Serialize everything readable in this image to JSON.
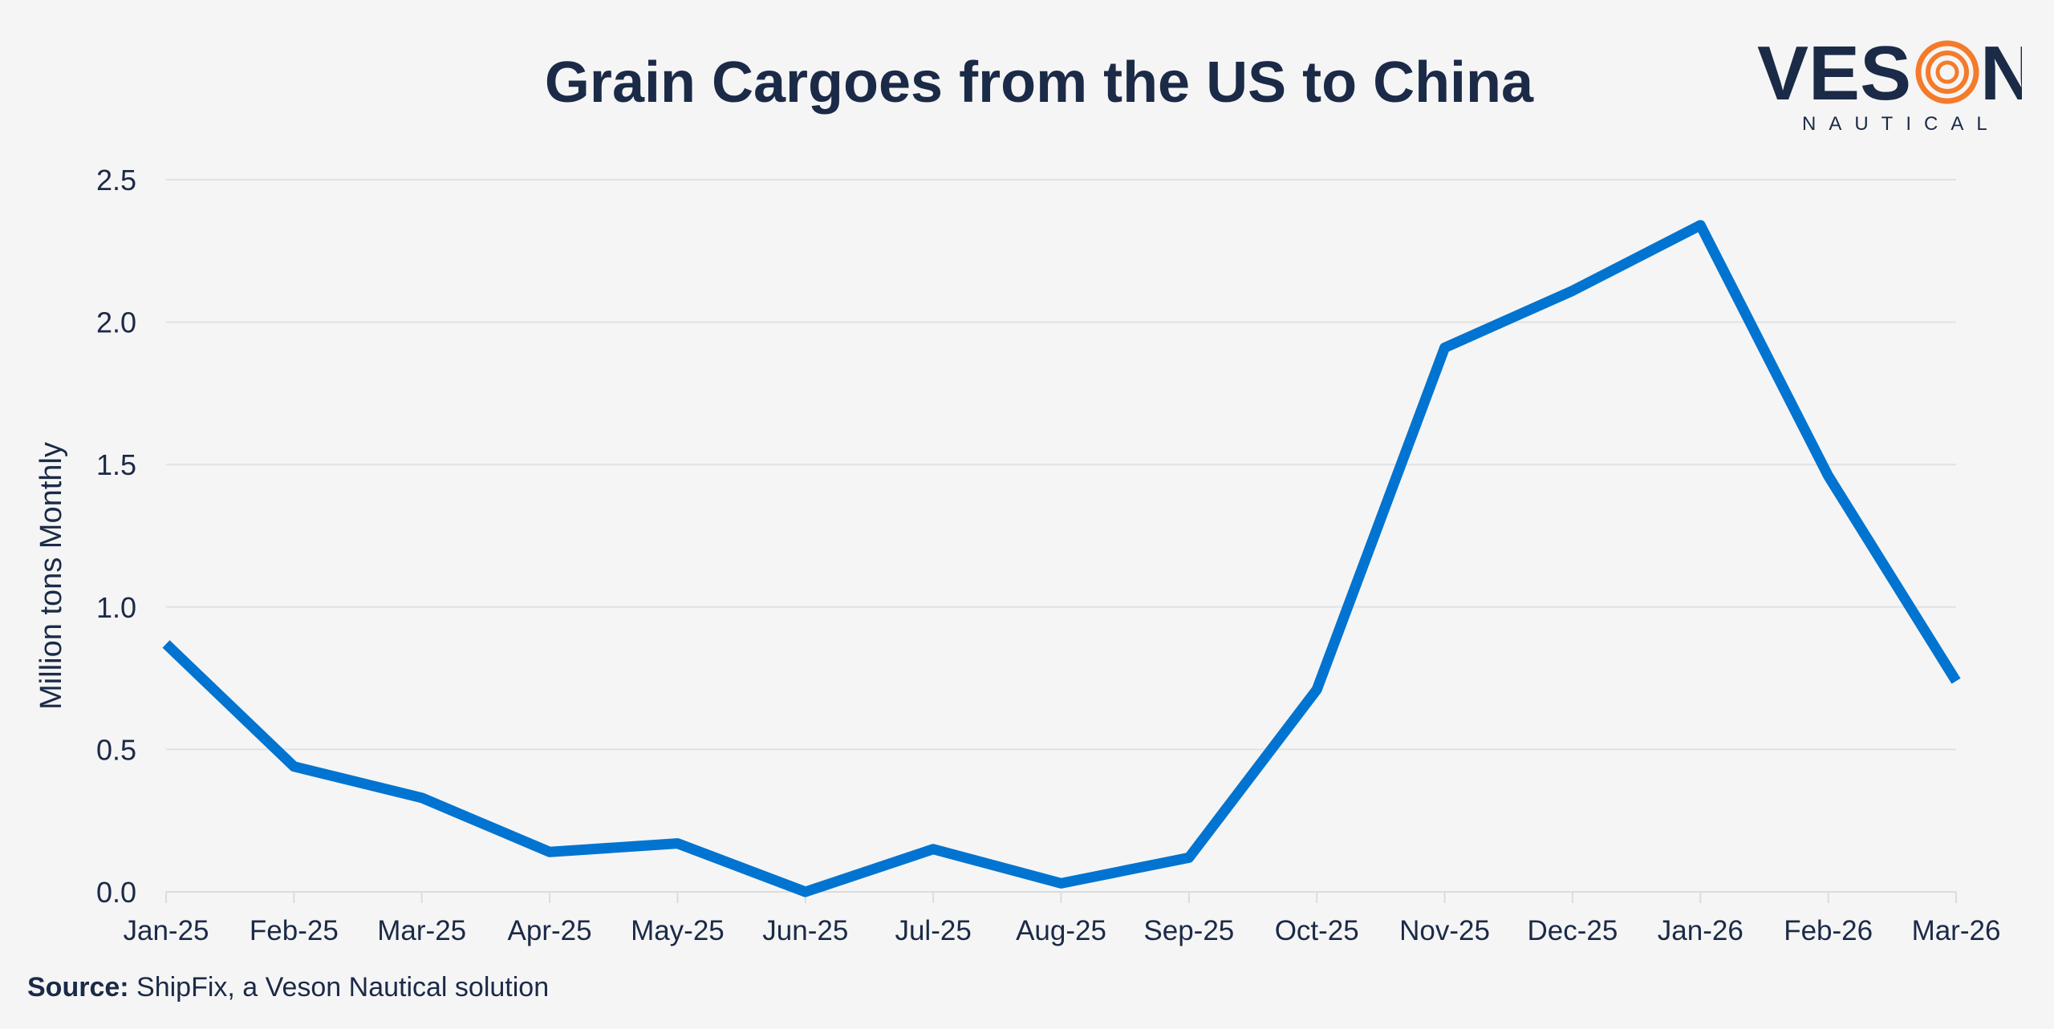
{
  "chart_data": {
    "type": "line",
    "title": "Grain Cargoes from the US to China",
    "xlabel": "",
    "ylabel": "Million tons Monthly",
    "categories": [
      "Jan-25",
      "Feb-25",
      "Mar-25",
      "Apr-25",
      "May-25",
      "Jun-25",
      "Jul-25",
      "Aug-25",
      "Sep-25",
      "Oct-25",
      "Nov-25",
      "Dec-25",
      "Jan-26",
      "Feb-26",
      "Mar-26"
    ],
    "values": [
      0.87,
      0.44,
      0.33,
      0.14,
      0.17,
      0.0,
      0.15,
      0.03,
      0.12,
      0.71,
      1.91,
      2.11,
      2.34,
      1.46,
      0.74
    ],
    "ylim": [
      0,
      2.5
    ],
    "yticks": [
      "0.0",
      "0.5",
      "1.0",
      "1.5",
      "2.0",
      "2.5"
    ],
    "grid": "horizontal",
    "legend": "none",
    "line_color": "#0074d0"
  },
  "logo": {
    "word_left": "VES",
    "word_o": "O",
    "word_right": "N",
    "sub": "NAUTICAL",
    "accent": "#f47b2a"
  },
  "source": {
    "label": "Source:",
    "text": " ShipFix, a Veson Nautical solution"
  }
}
